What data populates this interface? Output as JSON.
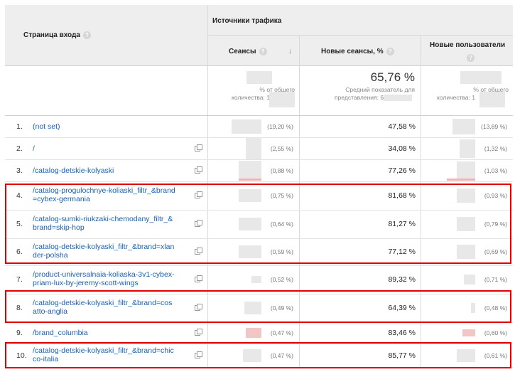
{
  "header": {
    "landing_page_label": "Страница входа",
    "group_label": "Источники трафика",
    "sessions_label": "Сеансы",
    "new_sessions_label": "Новые сеансы, %",
    "new_users_label": "Новые пользователи",
    "help_glyph": "?",
    "sort_glyph": "↓"
  },
  "summary": {
    "sessions_sub1": "% от общего",
    "sessions_sub2": "количества: 1",
    "new_sessions_value": "65,76 %",
    "new_sessions_sub1": "Средний показатель для",
    "new_sessions_sub2": "представления: 6",
    "new_users_sub1": "% от общего",
    "new_users_sub2": "количества: 1"
  },
  "rows": [
    {
      "index": "1.",
      "page_line1": "(not set)",
      "page_line2": "",
      "sessions_pct": "(19,20 %)",
      "new_sessions": "47,58 %",
      "new_users_pct": "(13,89 %)"
    },
    {
      "index": "2.",
      "page_line1": "/",
      "page_line2": "",
      "sessions_pct": "(2,55 %)",
      "new_sessions": "34,08 %",
      "new_users_pct": "(1,32 %)"
    },
    {
      "index": "3.",
      "page_line1": "/catalog-detskie-kolyaski",
      "page_line2": "",
      "sessions_pct": "(0,88 %)",
      "new_sessions": "77,26 %",
      "new_users_pct": "(1,03 %)"
    },
    {
      "index": "4.",
      "page_line1": "/catalog-progulochnye-koliaski_filtr_&brand",
      "page_line2": "=cybex-germania",
      "sessions_pct": "(0,75 %)",
      "new_sessions": "81,68 %",
      "new_users_pct": "(0,93 %)"
    },
    {
      "index": "5.",
      "page_line1": "/catalog-sumki-riukzaki-chemodany_filtr_&",
      "page_line2": "brand=skip-hop",
      "sessions_pct": "(0,64 %)",
      "new_sessions": "81,27 %",
      "new_users_pct": "(0,79 %)"
    },
    {
      "index": "6.",
      "page_line1": "/catalog-detskie-kolyaski_filtr_&brand=xlan",
      "page_line2": "der-polsha",
      "sessions_pct": "(0,59 %)",
      "new_sessions": "77,12 %",
      "new_users_pct": "(0,69 %)"
    },
    {
      "index": "7.",
      "page_line1": "/product-universalnaia-koliaska-3v1-cybex-",
      "page_line2": "priam-lux-by-jeremy-scott-wings",
      "sessions_pct": "(0,52 %)",
      "new_sessions": "89,32 %",
      "new_users_pct": "(0,71 %)"
    },
    {
      "index": "8.",
      "page_line1": "/catalog-detskie-kolyaski_filtr_&brand=cos",
      "page_line2": "atto-anglia",
      "sessions_pct": "(0,49 %)",
      "new_sessions": "64,39 %",
      "new_users_pct": "(0,48 %)"
    },
    {
      "index": "9.",
      "page_line1": "/brand_columbia",
      "page_line2": "",
      "sessions_pct": "(0,47 %)",
      "new_sessions": "83,46 %",
      "new_users_pct": "(0,60 %)"
    },
    {
      "index": "10.",
      "page_line1": "/catalog-detskie-kolyaski_filtr_&brand=chic",
      "page_line2": "co-italia",
      "sessions_pct": "(0,47 %)",
      "new_sessions": "85,77 %",
      "new_users_pct": "(0,61 %)"
    }
  ],
  "colors": {
    "link": "#1a5fb4",
    "highlight": "#e00000",
    "header_bg": "#eeeeee",
    "bar": "#f1b4b4"
  }
}
